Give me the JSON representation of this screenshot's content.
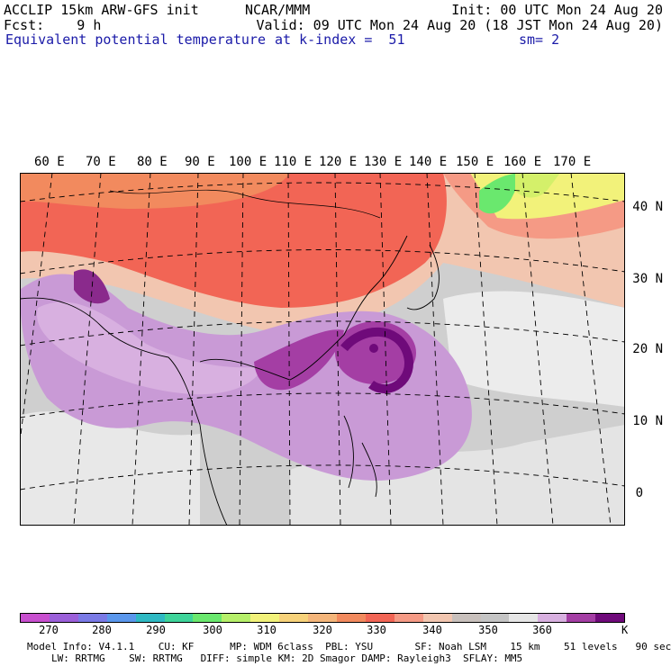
{
  "header": {
    "left_line1": "ACCLIP 15km ARW-GFS init",
    "left_line2": "Fcst:    9 h",
    "field_name": "Equivalent potential temperature",
    "center_line1": "NCAR/MMM",
    "init_time": "Init: 00 UTC Mon 24 Aug 20",
    "valid_time": "Valid: 09 UTC Mon 24 Aug 20 (18 JST Mon 24 Aug 20)",
    "level": "at k-index =  51",
    "smoothing": "sm= 2"
  },
  "map": {
    "longitude_labels": [
      "60 E",
      "70 E",
      "80 E",
      "90 E",
      "100 E",
      "110 E",
      "120 E",
      "130 E",
      "140 E",
      "150 E",
      "160 E",
      "170 E"
    ],
    "latitude_labels": [
      "40 N",
      "30 N",
      "20 N",
      "10 N",
      "0"
    ],
    "regions": [
      {
        "name": "north-warm-band",
        "color": "#f26555"
      },
      {
        "name": "northeast-cool-band",
        "color": "#d4f06a"
      },
      {
        "name": "tropical-moist-band",
        "color": "#c99ad6"
      },
      {
        "name": "typhoon-core",
        "color": "#8a2a8c"
      },
      {
        "name": "background-gray",
        "color": "#cfcfcf"
      }
    ]
  },
  "colorbar": {
    "colors": [
      "#c84fcf",
      "#9b5fd9",
      "#7a7ae6",
      "#5a97ec",
      "#2fb9c3",
      "#3ed49a",
      "#6ae86e",
      "#b6f06a",
      "#f2f27a",
      "#f7d27a",
      "#f4b57a",
      "#f28a5e",
      "#f26555",
      "#f59a85",
      "#f2c6b0",
      "#c8c0bc",
      "#c4c4c4",
      "#e6e6e6",
      "#d8b0e0",
      "#a43ea4",
      "#6f0a7a"
    ],
    "tick_labels": [
      "270",
      "280",
      "290",
      "300",
      "310",
      "320",
      "330",
      "340",
      "350",
      "360"
    ],
    "unit": "K"
  },
  "footer": {
    "line1": "Model Info: V4.1.1    CU: KF      MP: WDM 6class  PBL: YSU       SF: Noah LSM    15 km    51 levels   90 sec",
    "line2": "LW: RRTMG    SW: RRTMG   DIFF: simple KM: 2D Smagor DAMP: Rayleigh3  SFLAY: MM5"
  }
}
